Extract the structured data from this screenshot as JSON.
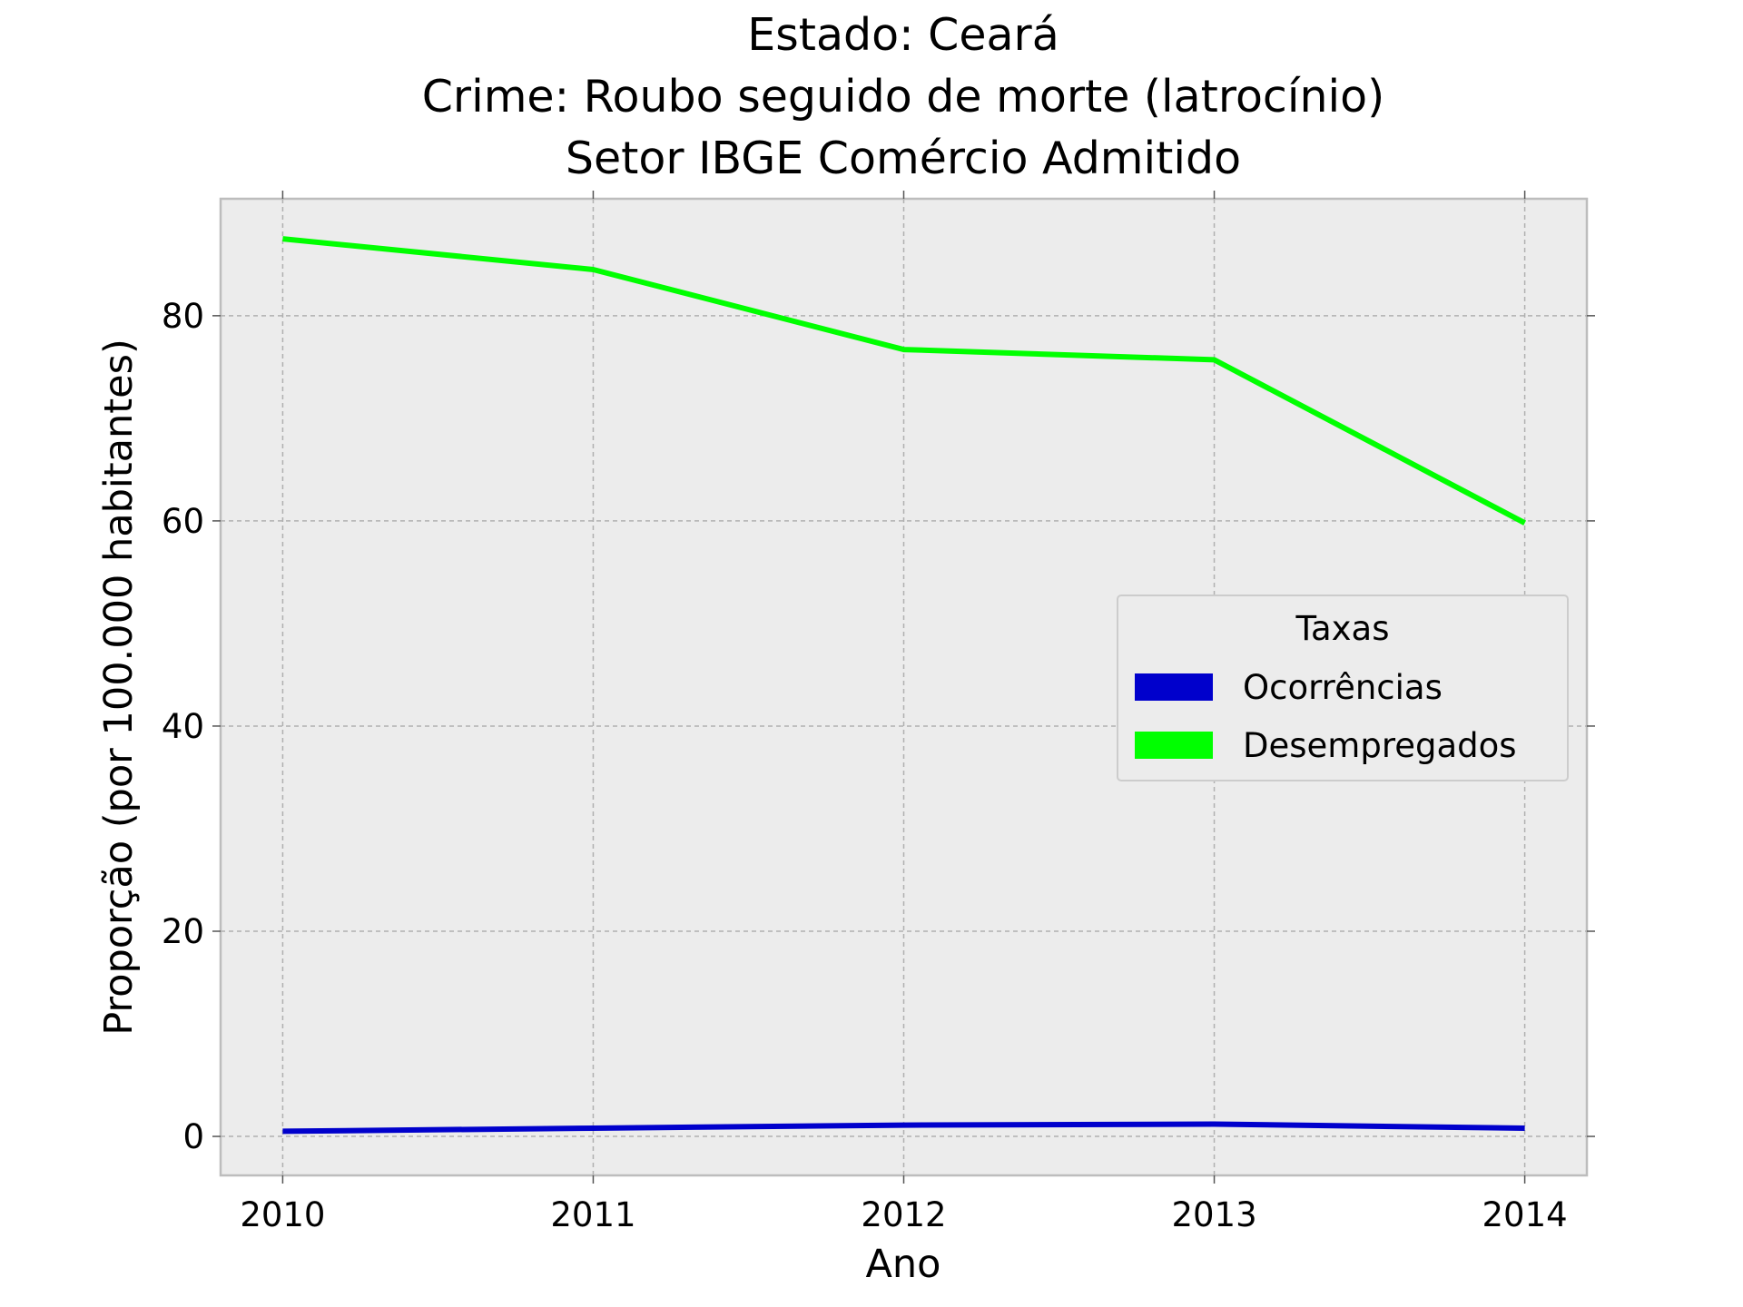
{
  "chart_data": {
    "type": "line",
    "title": [
      "Estado: Ceará",
      "Crime: Roubo seguido de morte (latrocínio)",
      "Setor IBGE  Comércio   Admitido"
    ],
    "xlabel": "Ano",
    "ylabel": "Proporção (por 100.000 habitantes)",
    "x": [
      2010,
      2011,
      2012,
      2013,
      2014
    ],
    "xticks": [
      "2010",
      "2011",
      "2012",
      "2013",
      "2014"
    ],
    "yticks": [
      "0",
      "20",
      "40",
      "60",
      "80"
    ],
    "ytick_values": [
      0,
      20,
      40,
      60,
      80
    ],
    "xlim": [
      2009.8,
      2014.2
    ],
    "ylim": [
      -3.8,
      91.4
    ],
    "grid": true,
    "legend": {
      "title": "Taxas",
      "placement": "center-right"
    },
    "series": [
      {
        "name": "Ocorrências",
        "color": "#0000cc",
        "values": [
          0.5,
          0.8,
          1.1,
          1.2,
          0.8
        ]
      },
      {
        "name": "Desempregados",
        "color": "#00ff00",
        "values": [
          87.5,
          84.5,
          76.7,
          75.7,
          59.8
        ]
      }
    ],
    "background": "#ececec"
  }
}
